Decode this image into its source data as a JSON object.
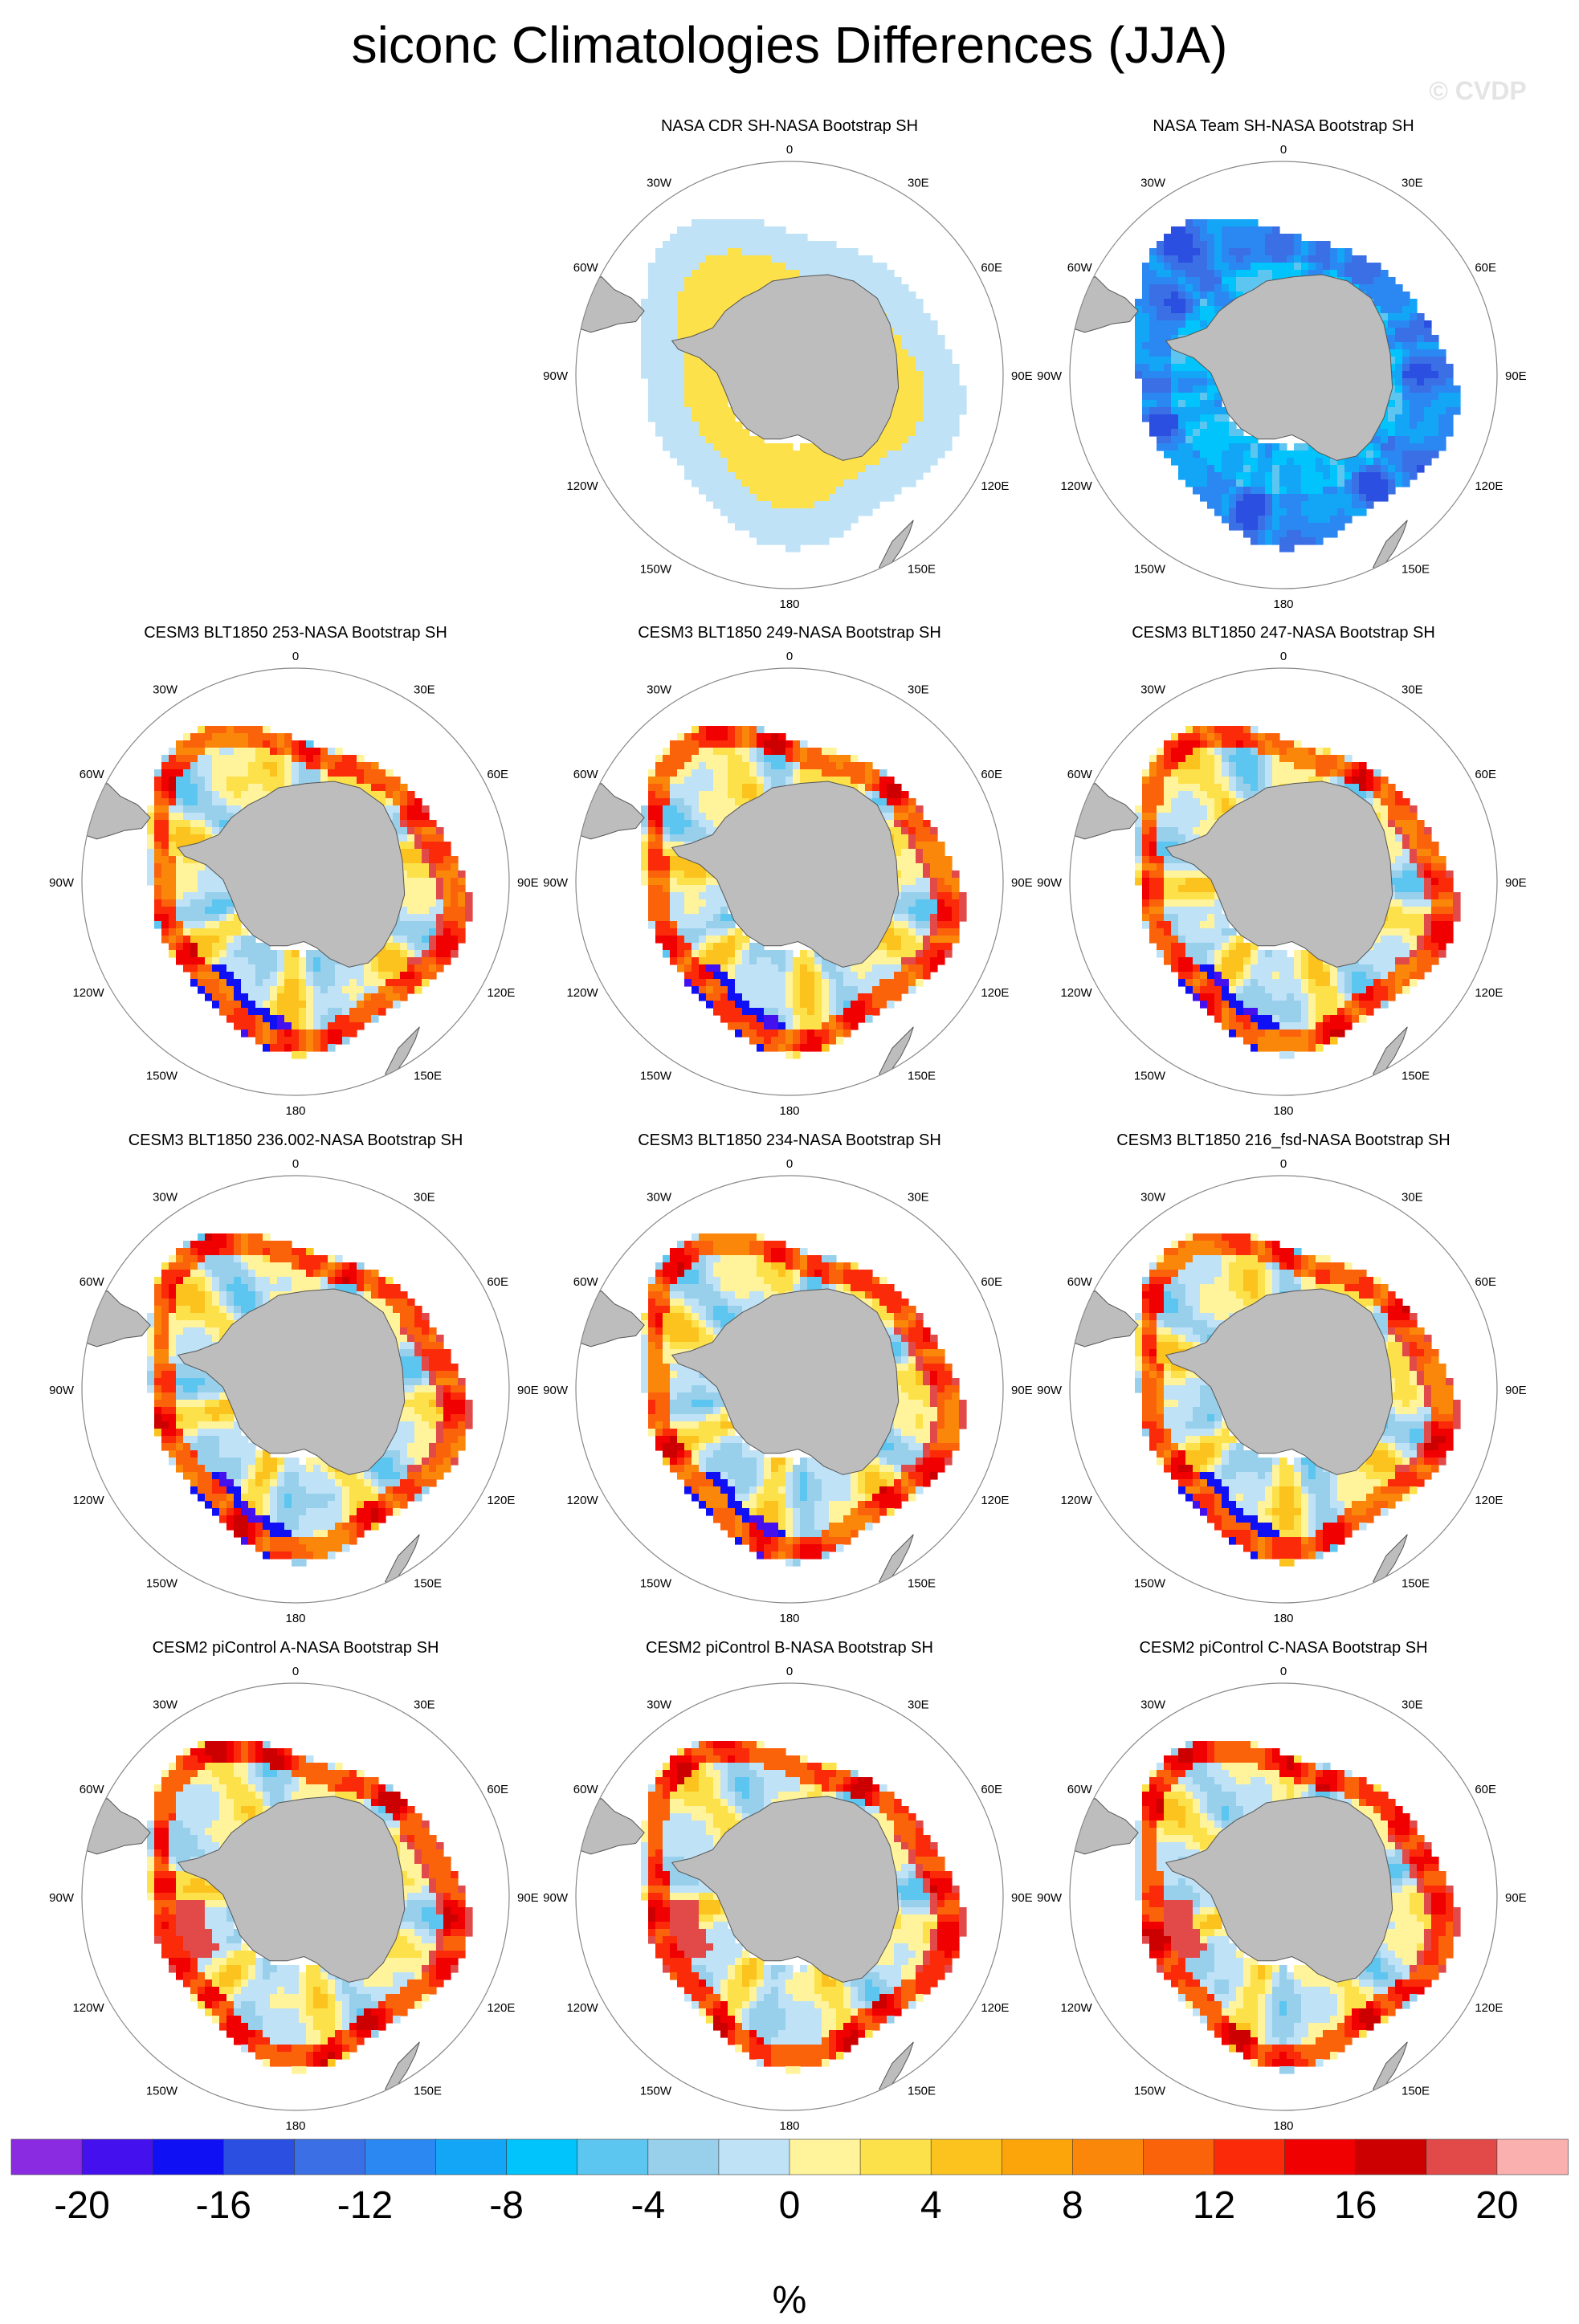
{
  "figure": {
    "title": "siconc Climatologies Differences (JJA)",
    "watermark": "© CVDP"
  },
  "axis_labels": {
    "top": "0",
    "bottom": "180",
    "left": "90W",
    "right": "90E",
    "upper_left_30": "30W",
    "upper_right_30": "30E",
    "left_60_upper": "60W",
    "right_60_upper": "60E",
    "left_120": "120W",
    "right_120": "120E",
    "left_150": "150W",
    "right_150": "150E"
  },
  "panels": [
    {
      "title": "NASA CDR SH-NASA Bootstrap SH",
      "row": 0,
      "col": 1,
      "pattern": "cdr"
    },
    {
      "title": "NASA Team SH-NASA Bootstrap SH",
      "row": 0,
      "col": 2,
      "pattern": "team"
    },
    {
      "title": "CESM3 BLT1850 253-NASA Bootstrap SH",
      "row": 1,
      "col": 0,
      "pattern": "cesm3"
    },
    {
      "title": "CESM3 BLT1850 249-NASA Bootstrap SH",
      "row": 1,
      "col": 1,
      "pattern": "cesm3"
    },
    {
      "title": "CESM3 BLT1850 247-NASA Bootstrap SH",
      "row": 1,
      "col": 2,
      "pattern": "cesm3"
    },
    {
      "title": "CESM3 BLT1850 236.002-NASA Bootstrap SH",
      "row": 2,
      "col": 0,
      "pattern": "cesm3"
    },
    {
      "title": "CESM3 BLT1850 234-NASA Bootstrap SH",
      "row": 2,
      "col": 1,
      "pattern": "cesm3"
    },
    {
      "title": "CESM3 BLT1850 216_fsd-NASA Bootstrap SH",
      "row": 2,
      "col": 2,
      "pattern": "cesm3"
    },
    {
      "title": "CESM2 piControl A-NASA Bootstrap SH",
      "row": 3,
      "col": 0,
      "pattern": "cesm2"
    },
    {
      "title": "CESM2 piControl B-NASA Bootstrap SH",
      "row": 3,
      "col": 1,
      "pattern": "cesm2"
    },
    {
      "title": "CESM2 piControl C-NASA Bootstrap SH",
      "row": 3,
      "col": 2,
      "pattern": "cesm2"
    }
  ],
  "colorbar": {
    "unit": "%",
    "range": [
      -22,
      22
    ],
    "tick_labels": [
      "-20",
      "-16",
      "-12",
      "-8",
      "-4",
      "0",
      "4",
      "8",
      "12",
      "16",
      "20"
    ],
    "colors": [
      "#8a2be2",
      "#4410ee",
      "#1010f5",
      "#2b4fe0",
      "#3b6fe6",
      "#2b88f2",
      "#14a6f6",
      "#00c4fb",
      "#5cc6f0",
      "#98d0ec",
      "#bfe2f6",
      "#fff39b",
      "#fde14a",
      "#fcc31e",
      "#fba50b",
      "#fb870a",
      "#fb630b",
      "#fb2b0a",
      "#f00000",
      "#cc0000",
      "#e24a4a",
      "#fbb0b0"
    ]
  }
}
